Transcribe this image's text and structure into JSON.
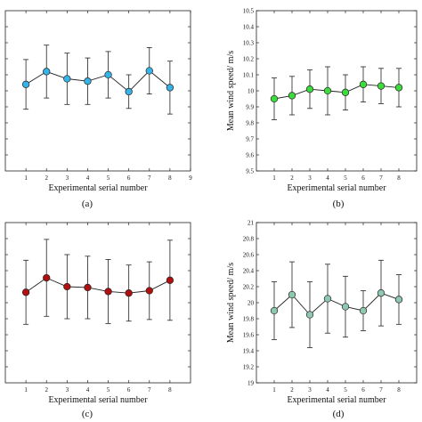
{
  "figure": {
    "panels": [
      {
        "id": "a",
        "label": "(a)"
      },
      {
        "id": "b",
        "label": "(b)"
      },
      {
        "id": "c",
        "label": "(c)"
      },
      {
        "id": "d",
        "label": "(d)"
      }
    ]
  },
  "chart_data": [
    {
      "panel": "(a)",
      "type": "line",
      "xlabel": "Experimental serial number",
      "ylabel": "",
      "xlim": [
        0,
        9
      ],
      "xticks": [
        1,
        2,
        3,
        4,
        5,
        6,
        7,
        8,
        9
      ],
      "ylim": [
        0,
        10
      ],
      "yticks_shown": false,
      "series": [
        {
          "x": [
            1,
            2,
            3,
            4,
            5,
            6,
            7,
            8
          ],
          "y": [
            5.4,
            6.2,
            5.75,
            5.6,
            6.0,
            4.95,
            6.25,
            5.2
          ],
          "err": [
            1.55,
            1.65,
            1.6,
            1.45,
            1.45,
            1.05,
            1.45,
            1.65
          ],
          "marker_color": "#37b3e8"
        }
      ],
      "grid": false
    },
    {
      "panel": "(b)",
      "type": "line",
      "xlabel": "Experimental serial number",
      "ylabel": "Mean wind speed/ m/s",
      "xlim": [
        0,
        9
      ],
      "xticks": [
        1,
        2,
        3,
        4,
        5,
        6,
        7,
        8
      ],
      "ylim": [
        9.5,
        10.5
      ],
      "yticks": [
        9.5,
        9.6,
        9.7,
        9.8,
        9.9,
        10.0,
        10.1,
        10.2,
        10.3,
        10.4,
        10.5
      ],
      "ytick_labels": [
        "9.5",
        "9.6",
        "9.7",
        "9.8",
        "9.9",
        "10",
        "10.1",
        "10.2",
        "10.3",
        "10.4",
        "10.5"
      ],
      "series": [
        {
          "x": [
            1,
            2,
            3,
            4,
            5,
            6,
            7,
            8
          ],
          "y": [
            9.95,
            9.97,
            10.01,
            10.0,
            9.99,
            10.04,
            10.03,
            10.02
          ],
          "err": [
            0.13,
            0.12,
            0.12,
            0.15,
            0.11,
            0.11,
            0.11,
            0.12
          ],
          "marker_color": "#3cdc3c"
        }
      ],
      "grid": false
    },
    {
      "panel": "(c)",
      "type": "line",
      "xlabel": "Experimental serial number",
      "ylabel": "",
      "xlim": [
        0,
        9
      ],
      "xticks": [
        1,
        2,
        3,
        4,
        5,
        6,
        7,
        8
      ],
      "ylim": [
        0,
        10
      ],
      "yticks_shown": false,
      "series": [
        {
          "x": [
            1,
            2,
            3,
            4,
            5,
            6,
            7,
            8
          ],
          "y": [
            5.65,
            6.55,
            6.0,
            5.95,
            5.7,
            5.6,
            5.75,
            6.4
          ],
          "err": [
            2.0,
            2.4,
            2.0,
            1.95,
            2.0,
            1.75,
            1.8,
            2.5
          ],
          "marker_color": "#b01010"
        }
      ],
      "grid": false
    },
    {
      "panel": "(d)",
      "type": "line",
      "xlabel": "Experimental serial number",
      "ylabel": "Mean wind speed/ m/s",
      "xlim": [
        0,
        9
      ],
      "xticks": [
        1,
        2,
        3,
        4,
        5,
        6,
        7,
        8
      ],
      "ylim": [
        19,
        21
      ],
      "yticks": [
        19.0,
        19.2,
        19.4,
        19.6,
        19.8,
        20.0,
        20.2,
        20.4,
        20.6,
        20.8,
        21.0
      ],
      "ytick_labels": [
        "19",
        "19.2",
        "19.4",
        "19.6",
        "19.8",
        "20",
        "20.2",
        "20.4",
        "20.6",
        "20.8",
        "21"
      ],
      "series": [
        {
          "x": [
            1,
            2,
            3,
            4,
            5,
            6,
            7,
            8
          ],
          "y": [
            19.9,
            20.1,
            19.85,
            20.05,
            19.95,
            19.9,
            20.12,
            20.04
          ],
          "err": [
            0.36,
            0.41,
            0.41,
            0.43,
            0.38,
            0.25,
            0.41,
            0.31
          ],
          "marker_color": "#8fc8b0"
        }
      ],
      "grid": false
    }
  ]
}
